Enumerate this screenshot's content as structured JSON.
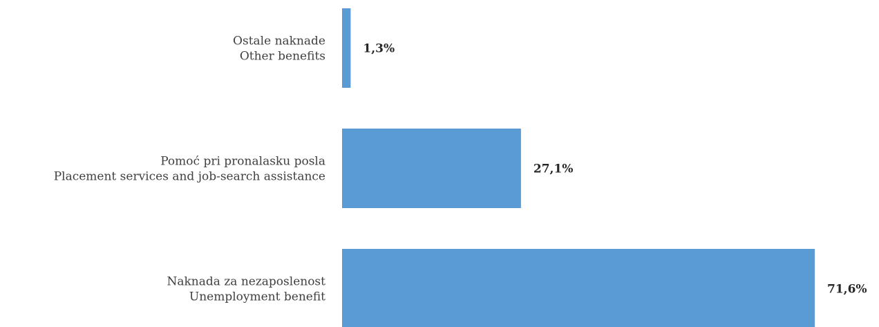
{
  "chart_data": {
    "type": "bar",
    "orientation": "horizontal",
    "categories": [
      [
        "Ostale naknade",
        "Other benefits"
      ],
      [
        "Pomoć pri pronalasku posla",
        "Placement services and job-search assistance"
      ],
      [
        "Naknada za nezaposlenost",
        "Unemployment benefit"
      ]
    ],
    "values": [
      1.3,
      27.1,
      71.6
    ],
    "value_labels": [
      "1,3%",
      "27,1%",
      "71,6%"
    ],
    "unit": "%",
    "bar_color": "#5b9bd5",
    "xlim": [
      0,
      71.6
    ],
    "grid": false,
    "legend": "none",
    "title": "",
    "xlabel": "",
    "ylabel": ""
  }
}
